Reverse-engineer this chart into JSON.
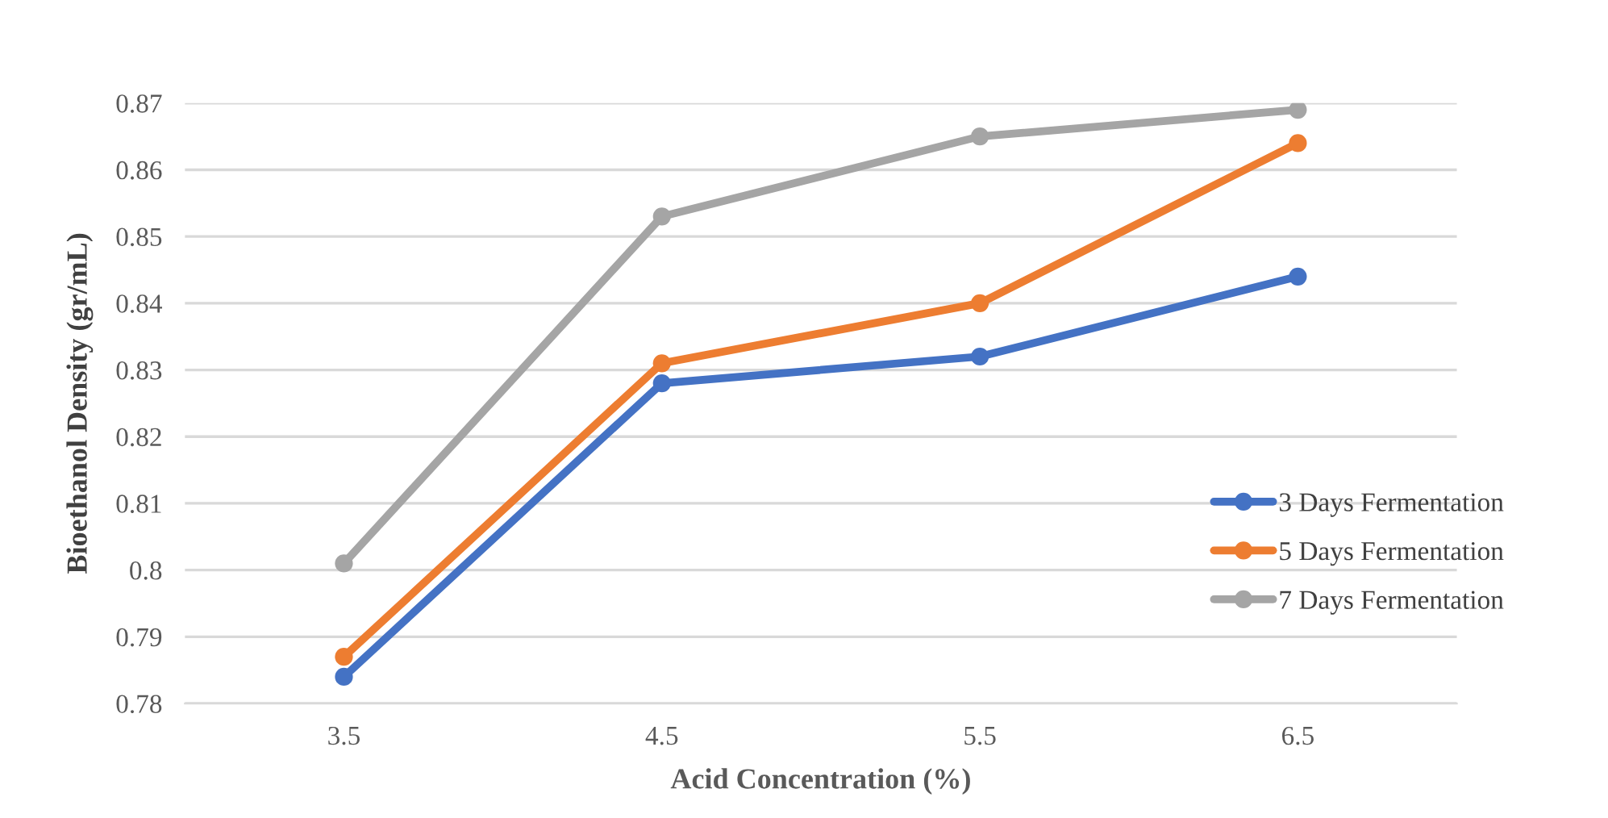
{
  "chart_data": {
    "type": "line",
    "xlabel": "Acid Concentration (%)",
    "ylabel": "Bioethanol Density (gr/mL)",
    "categories": [
      "3.5",
      "4.5",
      "5.5",
      "6.5"
    ],
    "series": [
      {
        "name": "3 Days Fermentation",
        "color": "#4472c4",
        "values": [
          0.784,
          0.828,
          0.832,
          0.844
        ]
      },
      {
        "name": "5 Days Fermentation",
        "color": "#ed7d31",
        "values": [
          0.787,
          0.831,
          0.84,
          0.864
        ]
      },
      {
        "name": "7 Days Fermentation",
        "color": "#a5a5a5",
        "values": [
          0.801,
          0.853,
          0.865,
          0.869
        ]
      }
    ],
    "ylim": [
      0.78,
      0.87
    ],
    "yticks": [
      0.78,
      0.79,
      0.8,
      0.81,
      0.82,
      0.83,
      0.84,
      0.85,
      0.86,
      0.87
    ],
    "grid": "y",
    "legend": "right",
    "marker": "circle",
    "line_style": "solid"
  }
}
